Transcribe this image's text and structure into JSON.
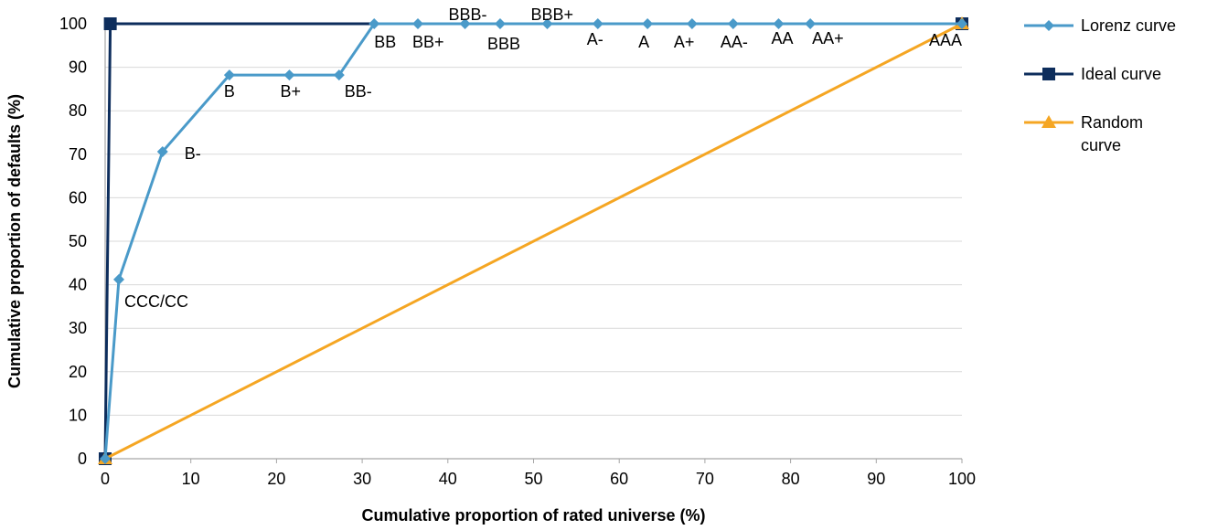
{
  "chart_data": {
    "type": "line",
    "xlabel": "Cumulative proportion of rated universe (%)",
    "ylabel": "Cumulative proportion of defaults (%)",
    "xlim": [
      0,
      100
    ],
    "ylim": [
      0,
      100
    ],
    "x_ticks": [
      "0",
      "10",
      "20",
      "30",
      "40",
      "50",
      "60",
      "70",
      "80",
      "90",
      "100"
    ],
    "y_ticks": [
      "0",
      "10",
      "20",
      "30",
      "40",
      "50",
      "60",
      "70",
      "80",
      "90",
      "100"
    ],
    "grid": "horizontal",
    "legend_position": "right",
    "series": [
      {
        "name": "Lorenz curve",
        "color": "#4a9ac9",
        "marker": "diamond",
        "points": [
          {
            "x": 0,
            "y": 0,
            "label": ""
          },
          {
            "x": 1.6,
            "y": 41.2,
            "label": "CCC/CC"
          },
          {
            "x": 6.7,
            "y": 70.6,
            "label": "B-"
          },
          {
            "x": 14.5,
            "y": 88.2,
            "label": "B"
          },
          {
            "x": 21.5,
            "y": 88.2,
            "label": "B+"
          },
          {
            "x": 27.3,
            "y": 88.2,
            "label": "BB-"
          },
          {
            "x": 31.4,
            "y": 100,
            "label": "BB"
          },
          {
            "x": 36.5,
            "y": 100,
            "label": "BB+"
          },
          {
            "x": 42.0,
            "y": 100,
            "label": "BBB-"
          },
          {
            "x": 46.1,
            "y": 100,
            "label": "BBB"
          },
          {
            "x": 51.6,
            "y": 100,
            "label": "BBB+"
          },
          {
            "x": 57.5,
            "y": 100,
            "label": "A-"
          },
          {
            "x": 63.3,
            "y": 100,
            "label": "A"
          },
          {
            "x": 68.5,
            "y": 100,
            "label": "A+"
          },
          {
            "x": 73.3,
            "y": 100,
            "label": "AA-"
          },
          {
            "x": 78.6,
            "y": 100,
            "label": "AA"
          },
          {
            "x": 82.3,
            "y": 100,
            "label": "AA+"
          },
          {
            "x": 100,
            "y": 100,
            "label": "AAA"
          }
        ]
      },
      {
        "name": "Ideal curve",
        "color": "#0d2d5c",
        "marker": "square",
        "points": [
          {
            "x": 0,
            "y": 0
          },
          {
            "x": 0.6,
            "y": 100
          },
          {
            "x": 100,
            "y": 100
          }
        ]
      },
      {
        "name": "Random curve",
        "color": "#f5a623",
        "marker": "triangle",
        "points": [
          {
            "x": 0,
            "y": 0
          },
          {
            "x": 100,
            "y": 100
          }
        ]
      }
    ]
  }
}
